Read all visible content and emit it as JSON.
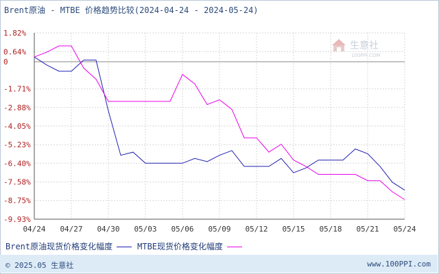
{
  "title": "Brent原油 - MTBE 价格趋势比较(2024-04-24 - 2024-05-24)",
  "watermark": {
    "brand": "生意社",
    "domain": "100PPI.COM"
  },
  "legend": {
    "series1": "Brent原油现货价格变化幅度",
    "series2": "MTBE现货价格变化幅度"
  },
  "footer": {
    "copyright": "© 2025.05 生意社",
    "site": "www.100PPI.com"
  },
  "colors": {
    "series1": "#1f1fb0",
    "series2": "#e800e8",
    "grid": "#d7d7d7",
    "axis": "#555555",
    "zero_line": "#888888"
  },
  "chart_data": {
    "type": "line",
    "title": "Brent原油 - MTBE 价格趋势比较(2024-04-24 - 2024-05-24)",
    "xlabel": "",
    "ylabel": "",
    "x": [
      "04/24",
      "04/25",
      "04/26",
      "04/27",
      "04/28",
      "04/29",
      "04/30",
      "05/01",
      "05/02",
      "05/03",
      "05/04",
      "05/05",
      "05/06",
      "05/07",
      "05/08",
      "05/09",
      "05/10",
      "05/11",
      "05/12",
      "05/13",
      "05/14",
      "05/15",
      "05/16",
      "05/17",
      "05/18",
      "05/19",
      "05/20",
      "05/21",
      "05/22",
      "05/23",
      "05/24"
    ],
    "x_tick_labels": [
      "04/24",
      "04/27",
      "04/30",
      "05/03",
      "05/06",
      "05/09",
      "05/12",
      "05/15",
      "05/18",
      "05/21",
      "05/24"
    ],
    "y_tick_labels": [
      "1.82%",
      "0.64%",
      "0",
      "-1.71%",
      "-2.88%",
      "-4.05%",
      "-5.23%",
      "-6.40%",
      "-7.58%",
      "-8.75%",
      "-9.93%"
    ],
    "y_ticks": [
      1.82,
      0.64,
      0,
      -1.71,
      -2.88,
      -4.05,
      -5.23,
      -6.4,
      -7.58,
      -8.75,
      -9.93
    ],
    "ylim": [
      -9.93,
      1.82
    ],
    "grid": true,
    "legend_position": "bottom",
    "series": [
      {
        "name": "Brent原油现货价格变化幅度",
        "values": [
          0.3,
          -0.2,
          -0.6,
          -0.6,
          0.1,
          0.1,
          -3.1,
          -5.9,
          -5.7,
          -6.4,
          -6.4,
          -6.4,
          -6.4,
          -6.1,
          -6.3,
          -5.9,
          -5.6,
          -6.6,
          -6.6,
          -6.6,
          -6.1,
          -7.0,
          -6.7,
          -6.2,
          -6.2,
          -6.2,
          -5.5,
          -5.8,
          -6.6,
          -7.6,
          -8.1
        ]
      },
      {
        "name": "MTBE现货价格变化幅度",
        "values": [
          0.3,
          0.6,
          1.0,
          1.0,
          -0.4,
          -1.1,
          -2.5,
          -2.5,
          -2.5,
          -2.5,
          -2.5,
          -2.5,
          -0.8,
          -1.4,
          -2.7,
          -2.4,
          -3.0,
          -4.8,
          -4.8,
          -5.7,
          -5.2,
          -6.2,
          -6.6,
          -7.1,
          -7.1,
          -7.1,
          -7.1,
          -7.5,
          -7.5,
          -8.2,
          -8.7
        ]
      }
    ]
  }
}
